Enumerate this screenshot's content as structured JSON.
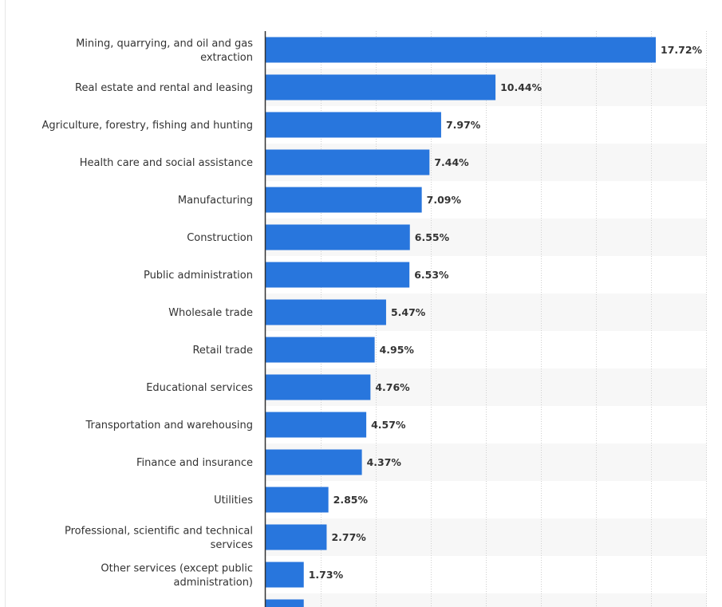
{
  "chart_data": {
    "type": "bar",
    "orientation": "horizontal",
    "title": "",
    "xlabel": "",
    "ylabel": "",
    "xlim": [
      0,
      20
    ],
    "grid": true,
    "value_suffix": "%",
    "bar_color": "#2876dd",
    "categories": [
      "Mining, quarrying, and oil and gas extraction",
      "Real estate and rental and leasing",
      "Agriculture, forestry, fishing and hunting",
      "Health care and social assistance",
      "Manufacturing",
      "Construction",
      "Public administration",
      "Wholesale trade",
      "Retail trade",
      "Educational services",
      "Transportation and warehousing",
      "Finance and insurance",
      "Utilities",
      "Professional, scientific and technical services",
      "Other services (except public administration)"
    ],
    "values": [
      17.72,
      10.44,
      7.97,
      7.44,
      7.09,
      6.55,
      6.53,
      5.47,
      4.95,
      4.76,
      4.57,
      4.37,
      2.85,
      2.77,
      1.73
    ],
    "value_labels": [
      "17.72%",
      "10.44%",
      "7.97%",
      "7.44%",
      "7.09%",
      "6.55%",
      "6.53%",
      "5.47%",
      "4.95%",
      "4.76%",
      "4.57%",
      "4.37%",
      "2.85%",
      "2.77%",
      "1.73%"
    ],
    "partially_visible_next_value": 1.73
  }
}
